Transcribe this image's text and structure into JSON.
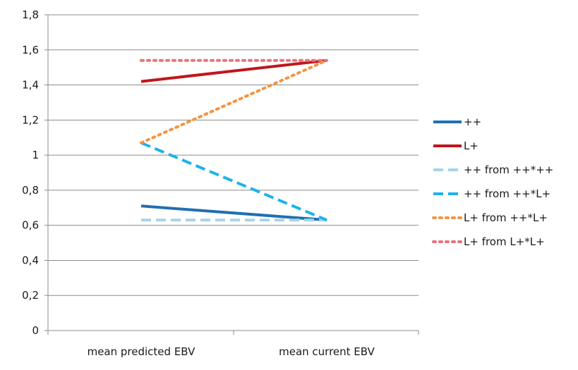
{
  "chart_data": {
    "type": "line",
    "categories": [
      "mean predicted EBV",
      "mean current EBV"
    ],
    "ylim": [
      0,
      1.8
    ],
    "yticks": [
      0,
      0.2,
      0.4,
      0.6,
      0.8,
      1,
      1.2,
      1.4,
      1.6,
      1.8
    ],
    "ytick_labels": [
      "0",
      "0,2",
      "0,4",
      "0,6",
      "0,8",
      "1",
      "1,2",
      "1,4",
      "1,6",
      "1,8"
    ],
    "grid": true,
    "legend_position": "right",
    "series": [
      {
        "name": "++",
        "values": [
          0.71,
          0.63
        ],
        "color": "#1f6fb4",
        "dash": "solid"
      },
      {
        "name": "L+",
        "values": [
          1.42,
          1.54
        ],
        "color": "#c0161b",
        "dash": "solid"
      },
      {
        "name": "++ from ++*++",
        "values": [
          0.63,
          0.63
        ],
        "color": "#a8d3e6",
        "dash": "dashed"
      },
      {
        "name": "++ from ++*L+",
        "values": [
          1.07,
          0.63
        ],
        "color": "#1fb2ec",
        "dash": "dashed"
      },
      {
        "name": "L+ from ++*L+",
        "values": [
          1.07,
          1.54
        ],
        "color": "#f59342",
        "dash": "dotted"
      },
      {
        "name": "L+ from L+*L+",
        "values": [
          1.54,
          1.54
        ],
        "color": "#e8737a",
        "dash": "dotted"
      }
    ]
  }
}
